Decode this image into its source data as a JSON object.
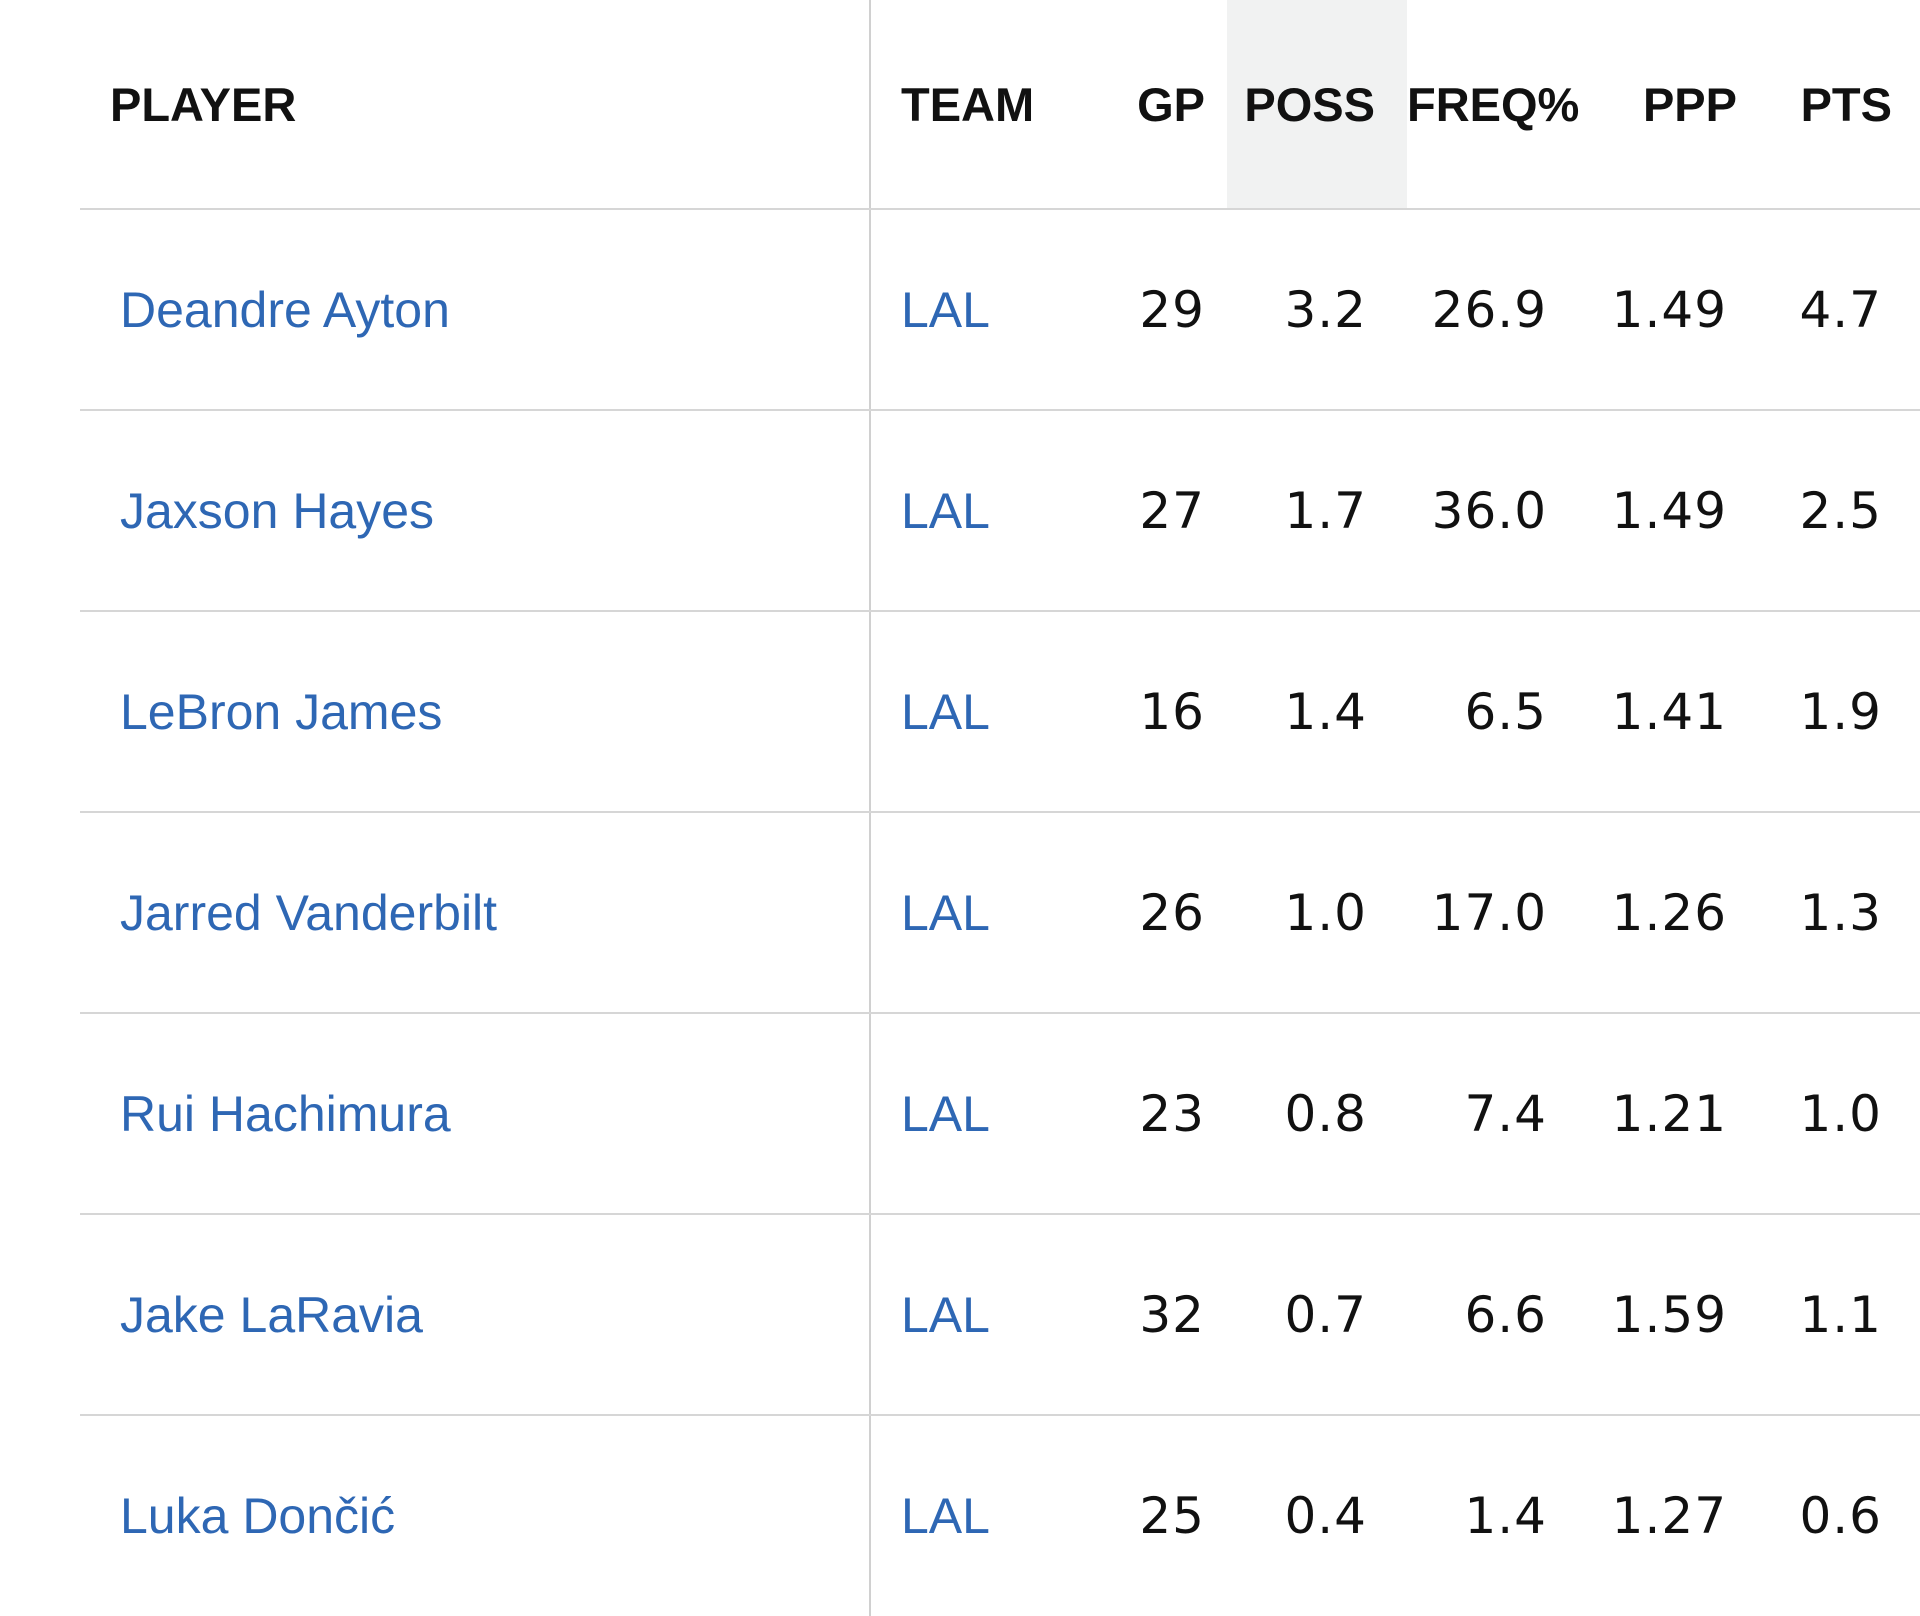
{
  "table": {
    "headers": {
      "player": "PLAYER",
      "team": "TEAM",
      "gp": "GP",
      "poss": "POSS",
      "freq": "FREQ%",
      "ppp": "PPP",
      "pts": "PTS"
    },
    "sorted_column": "POSS",
    "rows": [
      {
        "player": "Deandre Ayton",
        "team": "LAL",
        "gp": "29",
        "poss": "3.2",
        "freq": "26.9",
        "ppp": "1.49",
        "pts": "4.7"
      },
      {
        "player": "Jaxson Hayes",
        "team": "LAL",
        "gp": "27",
        "poss": "1.7",
        "freq": "36.0",
        "ppp": "1.49",
        "pts": "2.5"
      },
      {
        "player": "LeBron James",
        "team": "LAL",
        "gp": "16",
        "poss": "1.4",
        "freq": "6.5",
        "ppp": "1.41",
        "pts": "1.9"
      },
      {
        "player": "Jarred Vanderbilt",
        "team": "LAL",
        "gp": "26",
        "poss": "1.0",
        "freq": "17.0",
        "ppp": "1.26",
        "pts": "1.3"
      },
      {
        "player": "Rui Hachimura",
        "team": "LAL",
        "gp": "23",
        "poss": "0.8",
        "freq": "7.4",
        "ppp": "1.21",
        "pts": "1.0"
      },
      {
        "player": "Jake LaRavia",
        "team": "LAL",
        "gp": "32",
        "poss": "0.7",
        "freq": "6.6",
        "ppp": "1.59",
        "pts": "1.1"
      },
      {
        "player": "Luka Dončić",
        "team": "LAL",
        "gp": "25",
        "poss": "0.4",
        "freq": "1.4",
        "ppp": "1.27",
        "pts": "0.6"
      }
    ]
  },
  "colors": {
    "link": "#2e67b4",
    "sorted_header_bg": "#f1f2f2",
    "divider": "#d6d6d6"
  }
}
